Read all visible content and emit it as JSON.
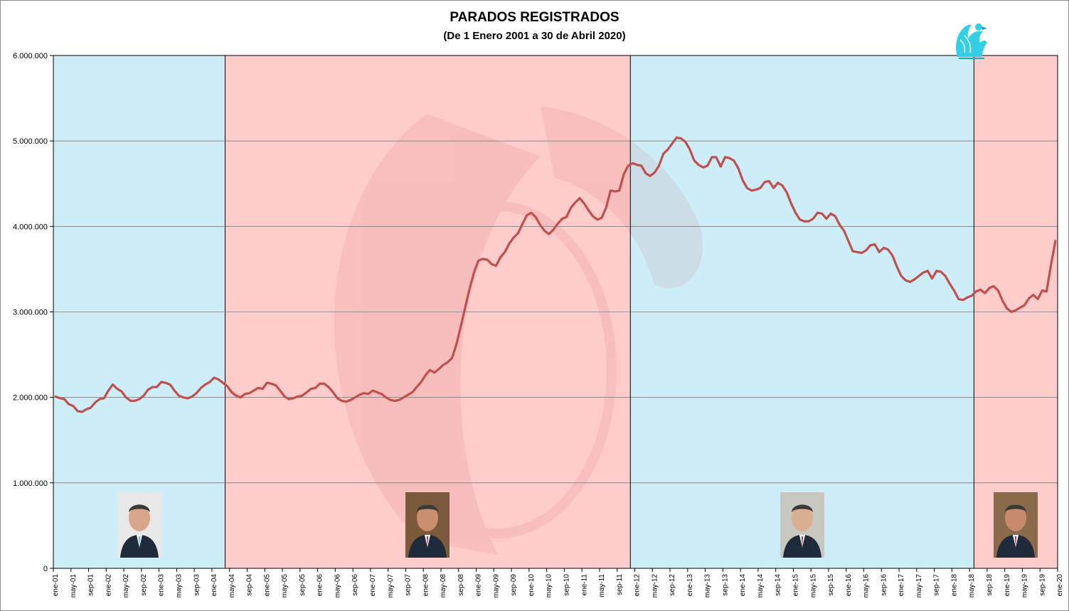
{
  "chart_data": {
    "type": "line",
    "title": "PARADOS REGISTRADOS",
    "subtitle": "(De 1 Enero 2001 a 30 de Abril 2020)",
    "xlabel": "",
    "ylabel": "",
    "ylim": [
      0,
      6000000
    ],
    "yticks": [
      0,
      1000000,
      2000000,
      3000000,
      4000000,
      5000000,
      6000000
    ],
    "ytick_labels": [
      "0",
      "1.000.000",
      "2.000.000",
      "3.000.000",
      "4.000.000",
      "5.000.000",
      "6.000.000"
    ],
    "grid": true,
    "x_start": "ene-01",
    "x_end": "abr-20",
    "xtick_labels": [
      "ene-01",
      "may-01",
      "sep-01",
      "ene-02",
      "may-02",
      "sep-02",
      "ene-03",
      "may-03",
      "sep-03",
      "ene-04",
      "may-04",
      "sep-04",
      "ene-05",
      "may-05",
      "sep-05",
      "ene-06",
      "may-06",
      "sep-06",
      "ene-07",
      "may-07",
      "sep-07",
      "ene-08",
      "may-08",
      "sep-08",
      "ene-09",
      "may-09",
      "sep-09",
      "ene-10",
      "may-10",
      "sep-10",
      "ene-11",
      "may-11",
      "sep-11",
      "ene-12",
      "may-12",
      "sep-12",
      "ene-13",
      "may-13",
      "sep-13",
      "ene-14",
      "may-14",
      "sep-14",
      "ene-15",
      "may-15",
      "sep-15",
      "ene-16",
      "may-16",
      "sep-16",
      "ene-17",
      "may-17",
      "sep-17",
      "ene-18",
      "may-18",
      "sep-18",
      "ene-19",
      "may-19",
      "sep-19",
      "ene-20"
    ],
    "periods": [
      {
        "from": "ene-01",
        "to": "abr-04",
        "color": "#cdeef9"
      },
      {
        "from": "abr-04",
        "to": "dic-11",
        "color": "#ffcccc"
      },
      {
        "from": "dic-11",
        "to": "jun-18",
        "color": "#cdeef9"
      },
      {
        "from": "jun-18",
        "to": "abr-20",
        "color": "#ffcccc"
      }
    ],
    "line_color": "#c0504d",
    "series": [
      {
        "values": [
          2010000,
          1990000,
          1980000,
          1920000,
          1900000,
          1840000,
          1830000,
          1860000,
          1880000,
          1940000,
          1980000,
          1990000,
          2080000,
          2150000,
          2100000,
          2070000,
          2000000,
          1960000,
          1960000,
          1980000,
          2020000,
          2090000,
          2120000,
          2120000,
          2180000,
          2170000,
          2150000,
          2080000,
          2020000,
          2000000,
          1990000,
          2010000,
          2050000,
          2110000,
          2150000,
          2180000,
          2230000,
          2210000,
          2170000,
          2130000,
          2060000,
          2020000,
          2000000,
          2040000,
          2050000,
          2080000,
          2110000,
          2100000,
          2170000,
          2160000,
          2140000,
          2080000,
          2010000,
          1980000,
          1990000,
          2010000,
          2020000,
          2060000,
          2100000,
          2110000,
          2160000,
          2160000,
          2120000,
          2060000,
          1990000,
          1960000,
          1950000,
          1970000,
          2000000,
          2030000,
          2050000,
          2040000,
          2080000,
          2060000,
          2040000,
          2000000,
          1970000,
          1960000,
          1970000,
          2000000,
          2030000,
          2060000,
          2120000,
          2180000,
          2260000,
          2320000,
          2290000,
          2330000,
          2380000,
          2410000,
          2460000,
          2620000,
          2830000,
          3050000,
          3270000,
          3460000,
          3600000,
          3620000,
          3610000,
          3560000,
          3540000,
          3640000,
          3700000,
          3800000,
          3870000,
          3920000,
          4030000,
          4130000,
          4160000,
          4110000,
          4020000,
          3950000,
          3910000,
          3960000,
          4030000,
          4090000,
          4110000,
          4220000,
          4280000,
          4330000,
          4270000,
          4190000,
          4120000,
          4080000,
          4100000,
          4220000,
          4420000,
          4410000,
          4420000,
          4610000,
          4710000,
          4740000,
          4720000,
          4710000,
          4620000,
          4590000,
          4630000,
          4710000,
          4850000,
          4900000,
          4970000,
          5040000,
          5030000,
          4990000,
          4900000,
          4770000,
          4720000,
          4690000,
          4710000,
          4810000,
          4810000,
          4700000,
          4810000,
          4800000,
          4770000,
          4680000,
          4540000,
          4450000,
          4420000,
          4430000,
          4450000,
          4520000,
          4530000,
          4450000,
          4510000,
          4480000,
          4400000,
          4270000,
          4160000,
          4080000,
          4060000,
          4060000,
          4090000,
          4160000,
          4150000,
          4090000,
          4150000,
          4120000,
          4020000,
          3950000,
          3830000,
          3710000,
          3700000,
          3690000,
          3720000,
          3780000,
          3790000,
          3700000,
          3750000,
          3730000,
          3660000,
          3530000,
          3420000,
          3370000,
          3350000,
          3380000,
          3420000,
          3460000,
          3480000,
          3390000,
          3480000,
          3470000,
          3420000,
          3330000,
          3250000,
          3150000,
          3140000,
          3170000,
          3190000,
          3240000,
          3260000,
          3220000,
          3280000,
          3300000,
          3250000,
          3130000,
          3040000,
          3000000,
          3020000,
          3050000,
          3080000,
          3160000,
          3200000,
          3150000,
          3250000,
          3240000,
          3550000,
          3830000
        ]
      }
    ]
  },
  "portraits": [
    {
      "label": "portrait-1",
      "period": 1
    },
    {
      "label": "portrait-2",
      "period": 2
    },
    {
      "label": "portrait-3",
      "period": 3
    },
    {
      "label": "portrait-4",
      "period": 4
    }
  ],
  "colors": {
    "blue_period": "#cdeef9",
    "red_period": "#ffcccc",
    "line": "#c0504d",
    "logo": "#33cfe6"
  }
}
